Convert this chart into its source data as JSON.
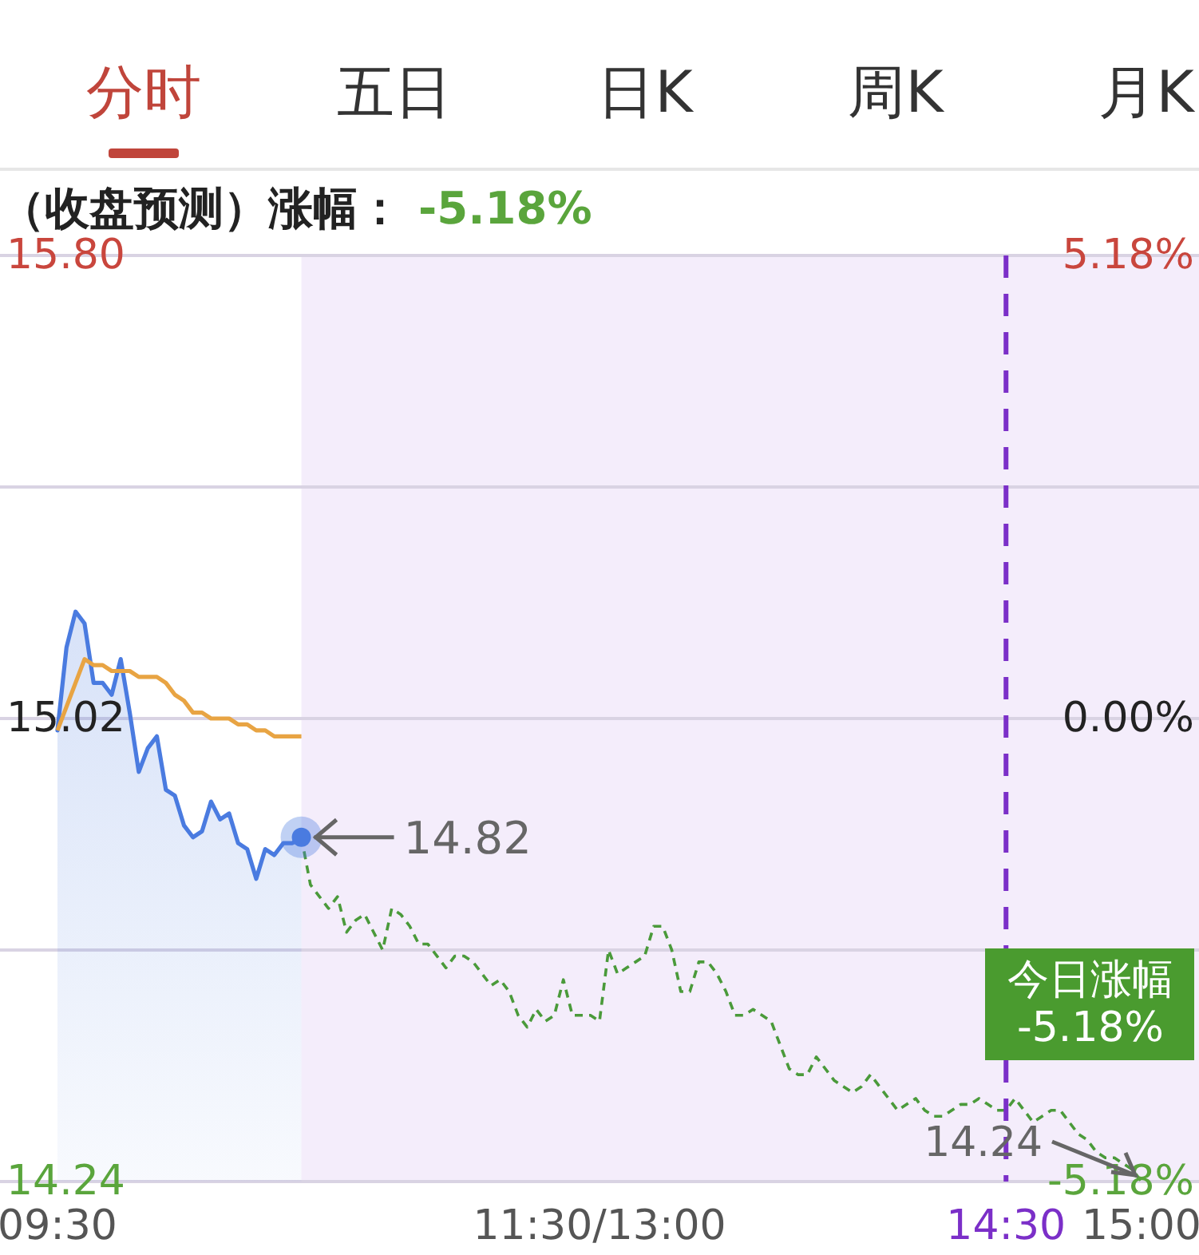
{
  "chart_data": {
    "type": "line",
    "title": "（收盘预测）涨幅：",
    "subtitle": "-5.18%",
    "annotations": [
      "分时",
      "五日",
      "日K",
      "周K",
      "月K",
      "14.82",
      {
        "text": "14.24",
        "x": "15:00",
        "y": 14.24
      },
      "今日涨幅\n-5.18%"
    ],
    "categories": [
      "09:30",
      null,
      null,
      null,
      null,
      null,
      null,
      null,
      null,
      null,
      null,
      null,
      null,
      null,
      null,
      null,
      null,
      null,
      null,
      null,
      null,
      null,
      null,
      null,
      null,
      null,
      null,
      null,
      null,
      null,
      null,
      null,
      null,
      null,
      null,
      null,
      null,
      null,
      null,
      null,
      null,
      null,
      null,
      null,
      null,
      null,
      null,
      null,
      null,
      null,
      null,
      null,
      null,
      null,
      null,
      null,
      null,
      null,
      null,
      null,
      "11:30/13:00",
      null,
      null,
      null,
      null,
      null,
      null,
      null,
      null,
      null,
      null,
      null,
      null,
      null,
      null,
      null,
      null,
      null,
      null,
      null,
      null,
      null,
      null,
      null,
      null,
      null,
      null,
      null,
      null,
      null,
      null,
      null,
      null,
      null,
      null,
      null,
      null,
      null,
      null,
      null,
      null,
      null,
      null,
      null,
      null,
      "14:30",
      null,
      null,
      null,
      null,
      null,
      null,
      null,
      null,
      null,
      null,
      null,
      null,
      null,
      null,
      "15:00"
    ],
    "ylim": [
      14.24,
      15.8
    ],
    "yticks": [
      {
        "value": 14.24,
        "label": "14.24"
      },
      {
        "value": 14.63,
        "label": null
      },
      {
        "value": 15.02,
        "label": "15.02"
      },
      {
        "value": 15.41,
        "label": null
      },
      {
        "value": 15.8,
        "label": "15.80"
      }
    ],
    "y2lim": [
      -5.18,
      5.18
    ],
    "y2ticks": [
      {
        "value": -5.18,
        "label": "-5.18%"
      },
      {
        "value": 0,
        "label": "0.00%"
      },
      {
        "value": 5.18,
        "label": "5.18%"
      }
    ],
    "grid": "y",
    "series": [
      {
        "type": "area",
        "color": "#4a7be0",
        "values": [
          15.0,
          15.14,
          15.2,
          15.18,
          15.08,
          15.08,
          15.06,
          15.12,
          15.03,
          14.93,
          14.97,
          14.99,
          14.9,
          14.89,
          14.84,
          14.82,
          14.83,
          14.88,
          14.85,
          14.86,
          14.81,
          14.8,
          14.75,
          14.8,
          14.79,
          14.81,
          14.81,
          14.82,
          null,
          null,
          null,
          null,
          null,
          null,
          null,
          null,
          null,
          null,
          null,
          null,
          null,
          null,
          null,
          null,
          null,
          null,
          null,
          null,
          null,
          null,
          null,
          null,
          null,
          null,
          null,
          null,
          null,
          null,
          null,
          null,
          null,
          null,
          null,
          null,
          null,
          null,
          null,
          null,
          null,
          null,
          null,
          null,
          null,
          null,
          null,
          null,
          null,
          null,
          null,
          null,
          null,
          null,
          null,
          null,
          null,
          null,
          null,
          null,
          null,
          null,
          null,
          null,
          null,
          null,
          null,
          null,
          null,
          null,
          null,
          null,
          null,
          null,
          null,
          null,
          null,
          null,
          null,
          null,
          null,
          null,
          null,
          null,
          null,
          null,
          null,
          null,
          null,
          null,
          null,
          null,
          null
        ]
      },
      {
        "color": "#e8a443",
        "values": [
          15.0,
          15.04,
          15.08,
          15.12,
          15.11,
          15.11,
          15.1,
          15.1,
          15.1,
          15.09,
          15.09,
          15.09,
          15.08,
          15.06,
          15.05,
          15.03,
          15.03,
          15.02,
          15.02,
          15.02,
          15.01,
          15.01,
          15.0,
          15.0,
          14.99,
          14.99,
          14.99,
          14.99,
          null,
          null,
          null,
          null,
          null,
          null,
          null,
          null,
          null,
          null,
          null,
          null,
          null,
          null,
          null,
          null,
          null,
          null,
          null,
          null,
          null,
          null,
          null,
          null,
          null,
          null,
          null,
          null,
          null,
          null,
          null,
          null,
          null,
          null,
          null,
          null,
          null,
          null,
          null,
          null,
          null,
          null,
          null,
          null,
          null,
          null,
          null,
          null,
          null,
          null,
          null,
          null,
          null,
          null,
          null,
          null,
          null,
          null,
          null,
          null,
          null,
          null,
          null,
          null,
          null,
          null,
          null,
          null,
          null,
          null,
          null,
          null,
          null,
          null,
          null,
          null,
          null,
          null,
          null,
          null,
          null,
          null,
          null,
          null,
          null,
          null,
          null,
          null,
          null,
          null,
          null,
          null,
          null
        ]
      },
      {
        "color": "#4a9a3a",
        "line_style": "dashed",
        "values": [
          null,
          null,
          null,
          null,
          null,
          null,
          null,
          null,
          null,
          null,
          null,
          null,
          null,
          null,
          null,
          null,
          null,
          null,
          null,
          null,
          null,
          null,
          null,
          null,
          null,
          null,
          null,
          14.82,
          14.74,
          14.72,
          14.7,
          14.72,
          14.66,
          14.68,
          14.69,
          14.66,
          14.63,
          14.7,
          14.69,
          14.67,
          14.64,
          14.64,
          14.62,
          14.6,
          14.62,
          14.62,
          14.61,
          14.59,
          14.57,
          14.58,
          14.56,
          14.52,
          14.5,
          14.53,
          14.51,
          14.52,
          14.58,
          14.52,
          14.52,
          14.52,
          14.51,
          14.63,
          14.59,
          14.6,
          14.61,
          14.62,
          14.67,
          14.67,
          14.63,
          14.56,
          14.56,
          14.61,
          14.61,
          14.59,
          14.56,
          14.52,
          14.52,
          14.53,
          14.52,
          14.51,
          14.47,
          14.43,
          14.42,
          14.42,
          14.45,
          14.43,
          14.41,
          14.4,
          14.39,
          14.4,
          14.42,
          14.4,
          14.38,
          14.36,
          14.37,
          14.38,
          14.36,
          14.35,
          14.35,
          14.36,
          14.37,
          14.37,
          14.38,
          14.37,
          14.36,
          14.36,
          14.38,
          14.36,
          14.34,
          14.35,
          14.36,
          14.36,
          14.34,
          14.32,
          14.31,
          14.29,
          14.28,
          14.28,
          14.27,
          14.26,
          14.24
        ]
      },
      {
        "type": "scatter",
        "color": "#4a7be0",
        "marker": "circle",
        "values": [
          null,
          null,
          null,
          null,
          null,
          null,
          null,
          null,
          null,
          null,
          null,
          null,
          null,
          null,
          null,
          null,
          null,
          null,
          null,
          null,
          null,
          null,
          null,
          null,
          null,
          null,
          null,
          14.82,
          null,
          null,
          null,
          null,
          null,
          null,
          null,
          null,
          null,
          null,
          null,
          null,
          null,
          null,
          null,
          null,
          null,
          null,
          null,
          null,
          null,
          null,
          null,
          null,
          null,
          null,
          null,
          null,
          null,
          null,
          null,
          null,
          null,
          null,
          null,
          null,
          null,
          null,
          null,
          null,
          null,
          null,
          null,
          null,
          null,
          null,
          null,
          null,
          null,
          null,
          null,
          null,
          null,
          null,
          null,
          null,
          null,
          null,
          null,
          null,
          null,
          null,
          null,
          null,
          null,
          null,
          null,
          null,
          null,
          null,
          null,
          null,
          null,
          null,
          null,
          null,
          null,
          null,
          null,
          null,
          null,
          null,
          null,
          null,
          null,
          null,
          null,
          null,
          null,
          null,
          null,
          null,
          null
        ]
      }
    ],
    "ref_lines": [
      {
        "axis": "x",
        "value": "14:30",
        "color": "#7b2fc8",
        "line_style": "dashed"
      }
    ]
  }
}
